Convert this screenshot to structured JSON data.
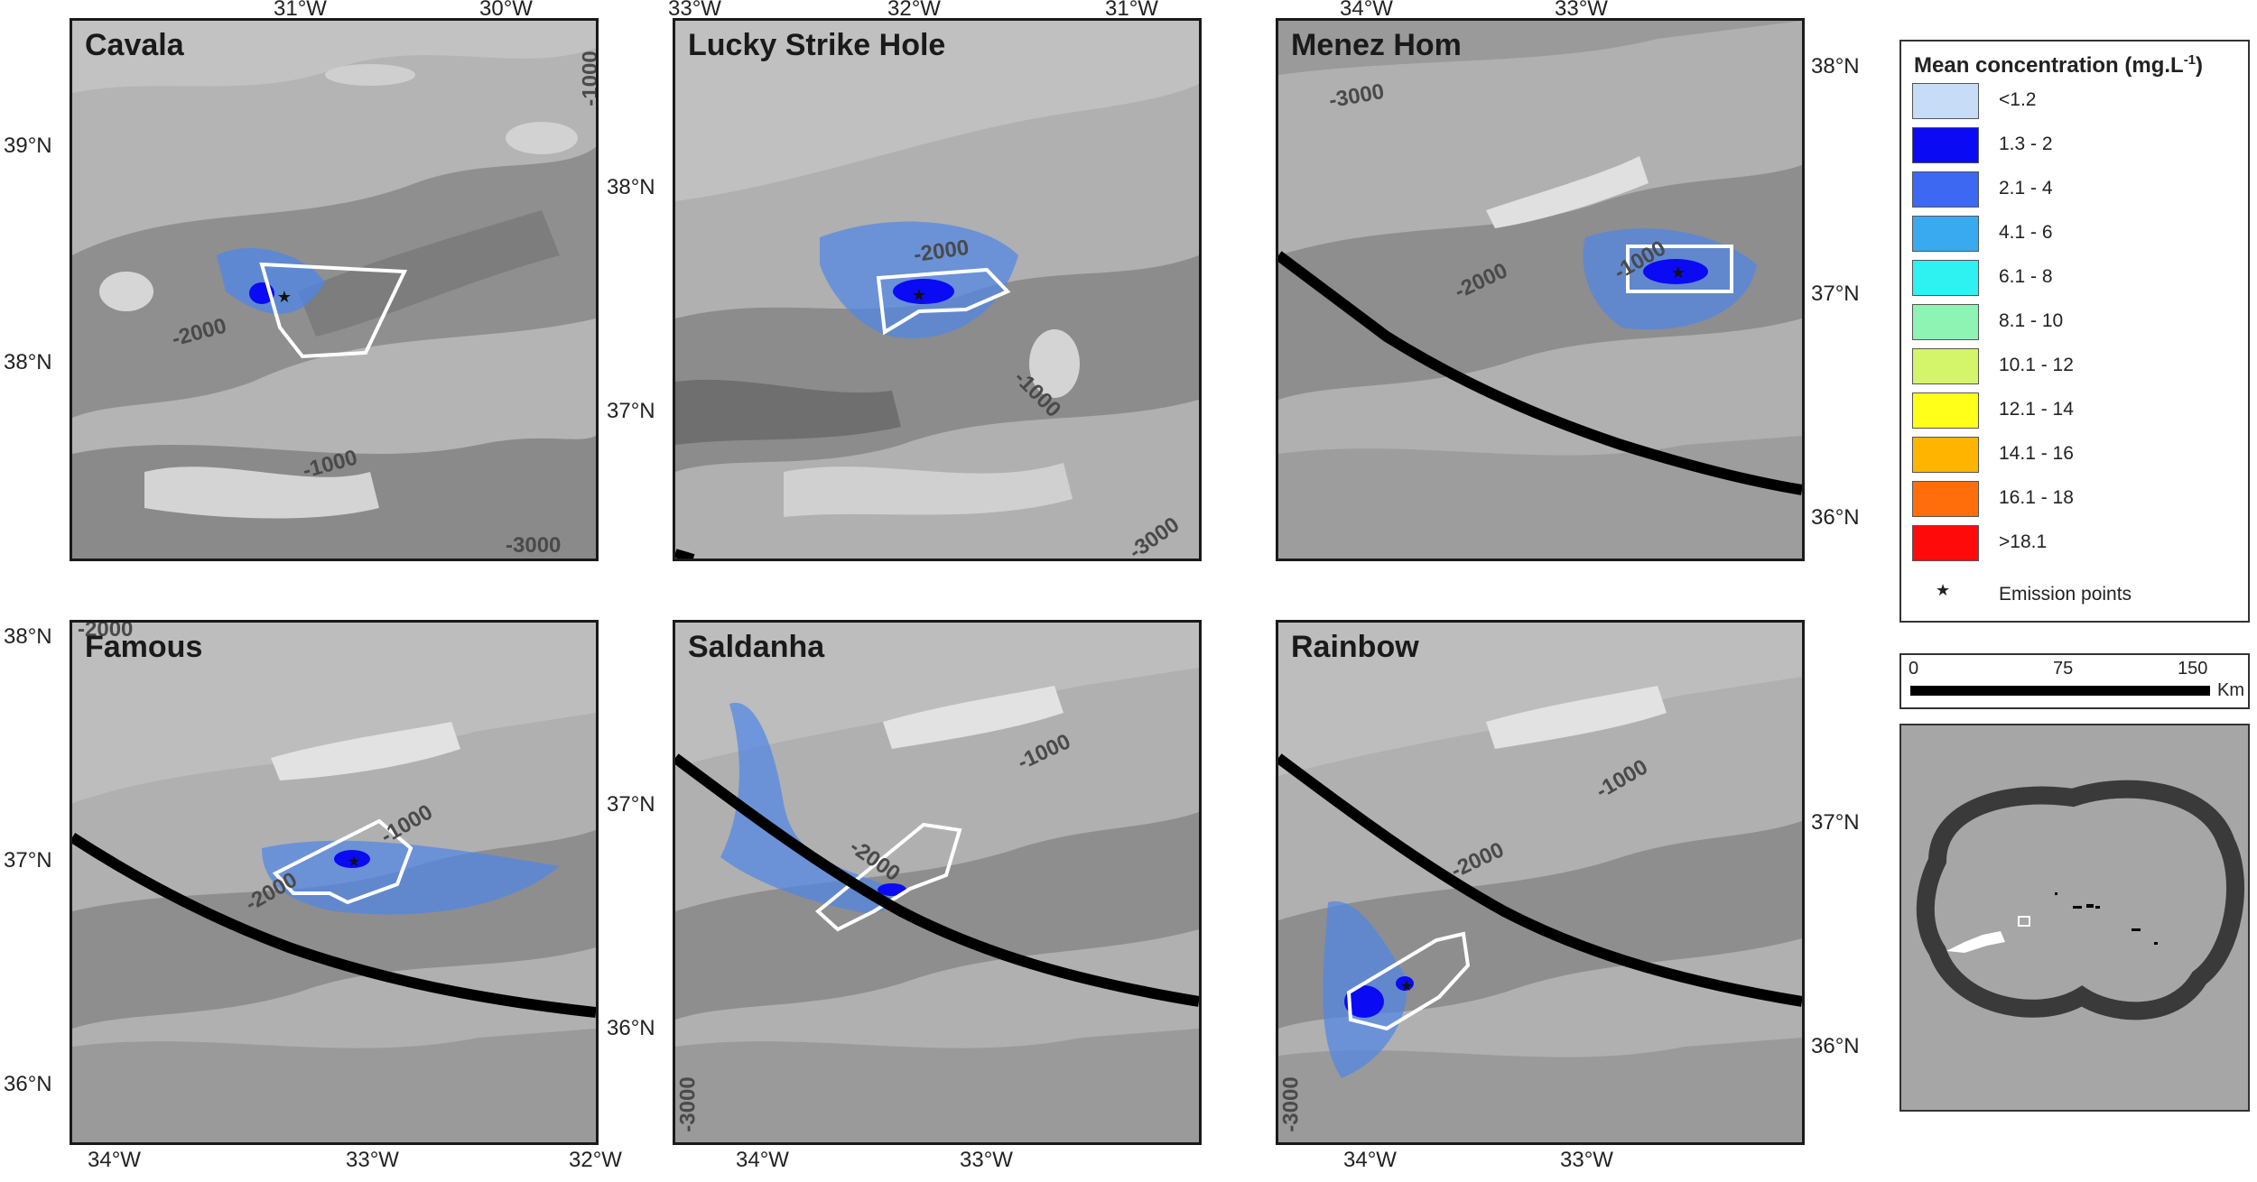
{
  "panels": [
    {
      "title": "Cavala",
      "top_ticks": [
        "31°W",
        "30°W"
      ],
      "left_ticks": [
        "39°N",
        "38°N"
      ],
      "contours": [
        "-1000",
        "-2000",
        "-1000",
        "-3000"
      ]
    },
    {
      "title": "Lucky Strike Hole",
      "top_ticks": [
        "33°W",
        "32°W",
        "31°W"
      ],
      "left_ticks": [
        "38°N",
        "37°N"
      ],
      "contours": [
        "-2000",
        "-1000",
        "-3000"
      ]
    },
    {
      "title": "Menez Hom",
      "top_ticks": [
        "34°W",
        "33°W"
      ],
      "right_ticks": [
        "38°N",
        "37°N",
        "36°N"
      ],
      "contours": [
        "-3000",
        "-2000",
        "-1000"
      ]
    },
    {
      "title": "Famous",
      "bottom_ticks": [
        "34°W",
        "33°W",
        "32°W"
      ],
      "left_ticks": [
        "38°N",
        "37°N",
        "36°N"
      ],
      "contours": [
        "-2000",
        "-1000",
        "-2000"
      ]
    },
    {
      "title": "Saldanha",
      "bottom_ticks": [
        "34°W",
        "33°W"
      ],
      "left_ticks": [
        "37°N",
        "36°N"
      ],
      "contours": [
        "-1000",
        "-2000",
        "-3000"
      ]
    },
    {
      "title": "Rainbow",
      "bottom_ticks": [
        "34°W",
        "33°W"
      ],
      "right_ticks": [
        "37°N",
        "36°N"
      ],
      "contours": [
        "-1000",
        "-2000",
        "-3000"
      ]
    }
  ],
  "legend": {
    "title": "Mean concentration (mg.L",
    "title_sup": "-1",
    "title_end": ")",
    "items": [
      {
        "label": "<1.2",
        "color": "#c6dcf7"
      },
      {
        "label": "1.3 - 2",
        "color": "#0a0af5"
      },
      {
        "label": "2.1 - 4",
        "color": "#3d68f2"
      },
      {
        "label": "4.1 - 6",
        "color": "#3aaaf0"
      },
      {
        "label": "6.1 - 8",
        "color": "#2ef2f2"
      },
      {
        "label": "8.1 - 10",
        "color": "#8ef4b4"
      },
      {
        "label": "10.1 - 12",
        "color": "#d4f56a"
      },
      {
        "label": "12.1 - 14",
        "color": "#ffff1a"
      },
      {
        "label": "14.1 - 16",
        "color": "#ffb400"
      },
      {
        "label": "16.1 - 18",
        "color": "#ff6e0a"
      },
      {
        "label": ">18.1",
        "color": "#ff0a0a"
      }
    ],
    "emission_label": "Emission points",
    "emission_symbol": "★"
  },
  "scalebar": {
    "labels": [
      "0",
      "75",
      "150"
    ],
    "unit": "Km"
  },
  "colors": {
    "frame": "#1a1a1a",
    "plume": "#4f86e8",
    "eez_line": "#000000",
    "boundary": "#ffffff"
  }
}
